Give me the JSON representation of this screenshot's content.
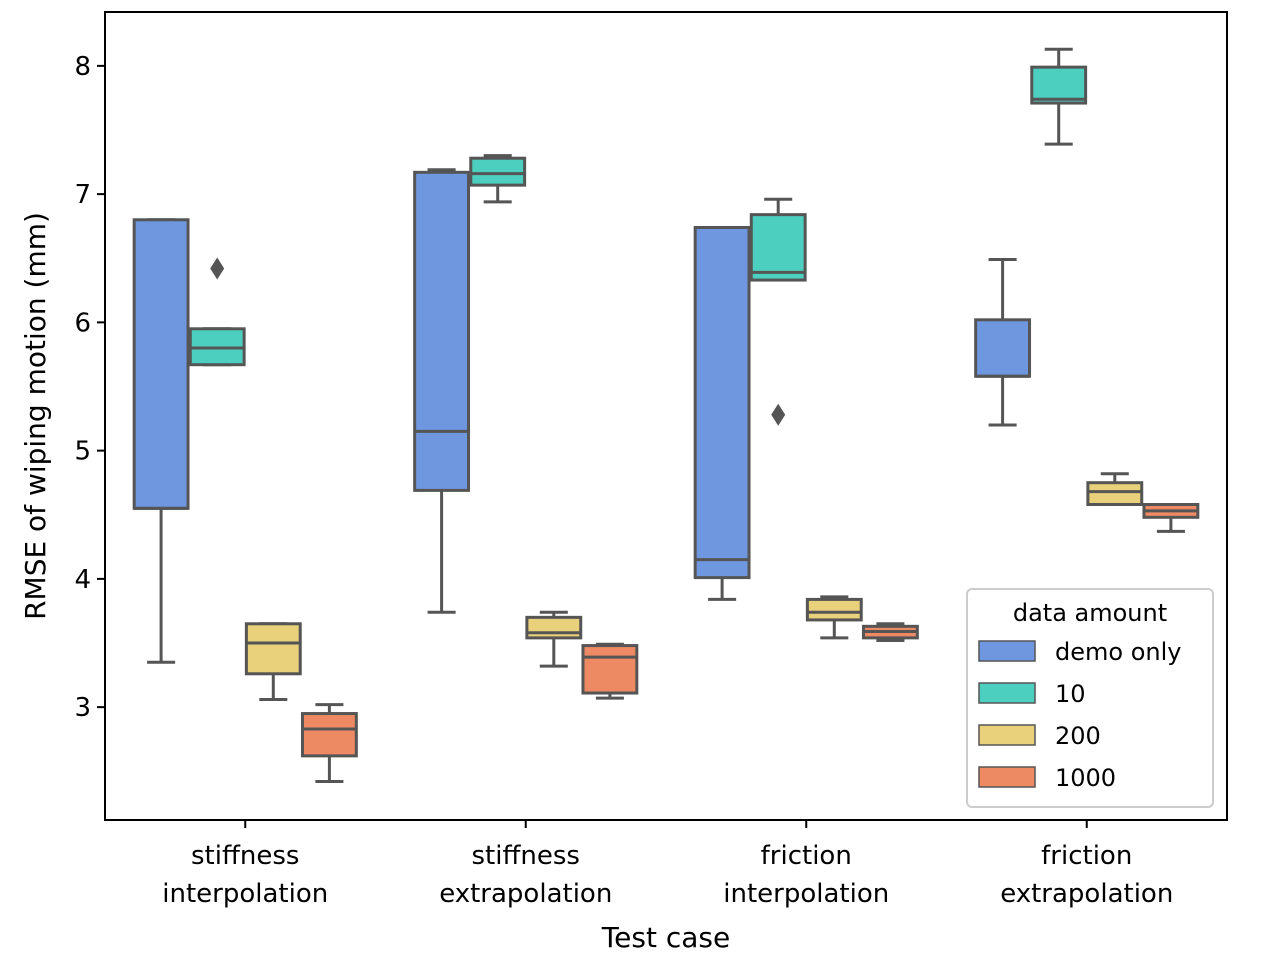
{
  "chart_data": {
    "type": "box",
    "xlabel": "Test case",
    "ylabel": "RMSE of wiping motion (mm)",
    "ylim": [
      2.12,
      8.42
    ],
    "yticks": [
      3,
      4,
      5,
      6,
      7,
      8
    ],
    "categories": [
      [
        "stiffness",
        "interpolation"
      ],
      [
        "stiffness",
        "extrapolation"
      ],
      [
        "friction",
        "interpolation"
      ],
      [
        "friction",
        "extrapolation"
      ]
    ],
    "legend": {
      "title": "data amount",
      "position": "lower-right"
    },
    "series": [
      {
        "name": "demo only",
        "color": "#6f97e0",
        "boxes": [
          {
            "whisker_low": 3.35,
            "q1": 4.55,
            "median": 4.55,
            "q3": 6.8,
            "whisker_high": 6.8,
            "outliers": []
          },
          {
            "whisker_low": 3.74,
            "q1": 4.69,
            "median": 5.15,
            "q3": 7.17,
            "whisker_high": 7.19,
            "outliers": []
          },
          {
            "whisker_low": 3.84,
            "q1": 4.01,
            "median": 4.15,
            "q3": 6.74,
            "whisker_high": 6.74,
            "outliers": []
          },
          {
            "whisker_low": 5.2,
            "q1": 5.58,
            "median": 5.58,
            "q3": 6.02,
            "whisker_high": 6.49,
            "outliers": []
          }
        ]
      },
      {
        "name": "10",
        "color": "#4dcfbf",
        "boxes": [
          {
            "whisker_low": 5.67,
            "q1": 5.67,
            "median": 5.8,
            "q3": 5.95,
            "whisker_high": 5.95,
            "outliers": [
              6.42
            ]
          },
          {
            "whisker_low": 6.94,
            "q1": 7.07,
            "median": 7.16,
            "q3": 7.28,
            "whisker_high": 7.3,
            "outliers": []
          },
          {
            "whisker_low": 6.33,
            "q1": 6.33,
            "median": 6.39,
            "q3": 6.84,
            "whisker_high": 6.96,
            "outliers": [
              5.28
            ]
          },
          {
            "whisker_low": 7.39,
            "q1": 7.71,
            "median": 7.74,
            "q3": 7.99,
            "whisker_high": 8.13,
            "outliers": []
          }
        ]
      },
      {
        "name": "200",
        "color": "#e8d17a",
        "boxes": [
          {
            "whisker_low": 3.06,
            "q1": 3.26,
            "median": 3.5,
            "q3": 3.65,
            "whisker_high": 3.65,
            "outliers": []
          },
          {
            "whisker_low": 3.32,
            "q1": 3.54,
            "median": 3.58,
            "q3": 3.7,
            "whisker_high": 3.74,
            "outliers": []
          },
          {
            "whisker_low": 3.54,
            "q1": 3.68,
            "median": 3.74,
            "q3": 3.84,
            "whisker_high": 3.86,
            "outliers": []
          },
          {
            "whisker_low": 4.58,
            "q1": 4.58,
            "median": 4.68,
            "q3": 4.75,
            "whisker_high": 4.82,
            "outliers": []
          }
        ]
      },
      {
        "name": "1000",
        "color": "#ee8a63",
        "boxes": [
          {
            "whisker_low": 2.42,
            "q1": 2.62,
            "median": 2.83,
            "q3": 2.95,
            "whisker_high": 3.02,
            "outliers": []
          },
          {
            "whisker_low": 3.07,
            "q1": 3.11,
            "median": 3.39,
            "q3": 3.48,
            "whisker_high": 3.49,
            "outliers": []
          },
          {
            "whisker_low": 3.52,
            "q1": 3.54,
            "median": 3.59,
            "q3": 3.63,
            "whisker_high": 3.65,
            "outliers": []
          },
          {
            "whisker_low": 4.37,
            "q1": 4.48,
            "median": 4.53,
            "q3": 4.58,
            "whisker_high": 4.58,
            "outliers": []
          }
        ]
      }
    ]
  }
}
